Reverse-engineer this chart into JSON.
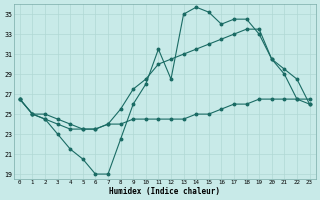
{
  "xlabel": "Humidex (Indice chaleur)",
  "bg_color": "#c8eae8",
  "line_color": "#1a6b64",
  "grid_color": "#b0d8d4",
  "xlim": [
    -0.5,
    23.5
  ],
  "ylim": [
    18.5,
    36.0
  ],
  "yticks": [
    19,
    21,
    23,
    25,
    27,
    29,
    31,
    33,
    35
  ],
  "xticks": [
    0,
    1,
    2,
    3,
    4,
    5,
    6,
    7,
    8,
    9,
    10,
    11,
    12,
    13,
    14,
    15,
    16,
    17,
    18,
    19,
    20,
    21,
    22,
    23
  ],
  "curve1_x": [
    0,
    1,
    2,
    3,
    4,
    5,
    6,
    7,
    8,
    9,
    10,
    11,
    12,
    13,
    14,
    15,
    16,
    17,
    18,
    19,
    20,
    21,
    22,
    23
  ],
  "curve1_y": [
    26.5,
    25.0,
    24.5,
    23.0,
    21.5,
    20.5,
    19.0,
    19.0,
    22.5,
    26.0,
    28.0,
    31.5,
    28.5,
    35.0,
    35.7,
    35.2,
    34.0,
    34.5,
    34.5,
    33.0,
    30.5,
    29.5,
    28.5,
    26.0
  ],
  "curve2_x": [
    0,
    1,
    2,
    3,
    4,
    5,
    6,
    7,
    8,
    9,
    10,
    11,
    12,
    13,
    14,
    15,
    16,
    17,
    18,
    19,
    20,
    21,
    22,
    23
  ],
  "curve2_y": [
    26.5,
    25.0,
    25.0,
    24.5,
    24.0,
    23.5,
    23.5,
    24.0,
    25.5,
    27.5,
    28.5,
    30.0,
    30.5,
    31.0,
    31.5,
    32.0,
    32.5,
    33.0,
    33.5,
    33.5,
    30.5,
    29.0,
    26.5,
    26.0
  ],
  "curve3_x": [
    0,
    1,
    2,
    3,
    4,
    5,
    6,
    7,
    8,
    9,
    10,
    11,
    12,
    13,
    14,
    15,
    16,
    17,
    18,
    19,
    20,
    21,
    22,
    23
  ],
  "curve3_y": [
    26.5,
    25.0,
    24.5,
    24.0,
    23.5,
    23.5,
    23.5,
    24.0,
    24.0,
    24.5,
    24.5,
    24.5,
    24.5,
    24.5,
    25.0,
    25.0,
    25.5,
    26.0,
    26.0,
    26.5,
    26.5,
    26.5,
    26.5,
    26.5
  ]
}
